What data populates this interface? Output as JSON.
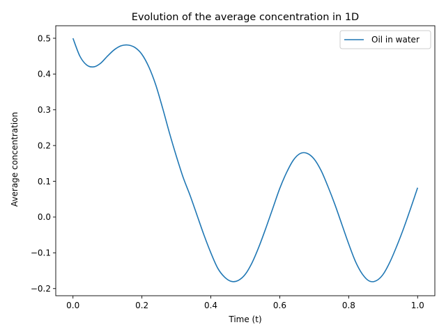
{
  "chart_data": {
    "type": "line",
    "title": "Evolution of the average concentration in 1D",
    "xlabel": "Time (t)",
    "ylabel": "Average concentration",
    "xlim": [
      -0.05,
      1.05
    ],
    "ylim": [
      -0.22,
      0.535
    ],
    "xticks": [
      0.0,
      0.2,
      0.4,
      0.6,
      0.8,
      1.0
    ],
    "xtick_labels": [
      "0.0",
      "0.2",
      "0.4",
      "0.6",
      "0.8",
      "1.0"
    ],
    "yticks": [
      -0.2,
      -0.1,
      0.0,
      0.1,
      0.2,
      0.3,
      0.4,
      0.5
    ],
    "ytick_labels": [
      "−0.2",
      "−0.1",
      "0.0",
      "0.1",
      "0.2",
      "0.3",
      "0.4",
      "0.5"
    ],
    "grid": false,
    "legend_position": "upper-right",
    "series": [
      {
        "name": "Oil in water",
        "color": "#1f77b4",
        "x": [
          0.0,
          0.02,
          0.04,
          0.06,
          0.08,
          0.1,
          0.12,
          0.14,
          0.16,
          0.18,
          0.2,
          0.22,
          0.24,
          0.26,
          0.28,
          0.3,
          0.32,
          0.34,
          0.36,
          0.38,
          0.4,
          0.42,
          0.44,
          0.46,
          0.48,
          0.5,
          0.52,
          0.54,
          0.56,
          0.58,
          0.6,
          0.62,
          0.64,
          0.66,
          0.68,
          0.7,
          0.72,
          0.74,
          0.76,
          0.78,
          0.8,
          0.82,
          0.84,
          0.86,
          0.88,
          0.9,
          0.92,
          0.94,
          0.96,
          0.98,
          1.0
        ],
        "y": [
          0.5,
          0.45,
          0.425,
          0.42,
          0.43,
          0.45,
          0.468,
          0.479,
          0.481,
          0.474,
          0.455,
          0.42,
          0.37,
          0.305,
          0.235,
          0.17,
          0.11,
          0.06,
          0.005,
          -0.05,
          -0.1,
          -0.143,
          -0.168,
          -0.18,
          -0.177,
          -0.16,
          -0.127,
          -0.082,
          -0.03,
          0.025,
          0.08,
          0.125,
          0.16,
          0.178,
          0.178,
          0.162,
          0.13,
          0.085,
          0.035,
          -0.02,
          -0.075,
          -0.125,
          -0.16,
          -0.179,
          -0.178,
          -0.16,
          -0.125,
          -0.08,
          -0.03,
          0.025,
          0.082
        ]
      }
    ]
  }
}
